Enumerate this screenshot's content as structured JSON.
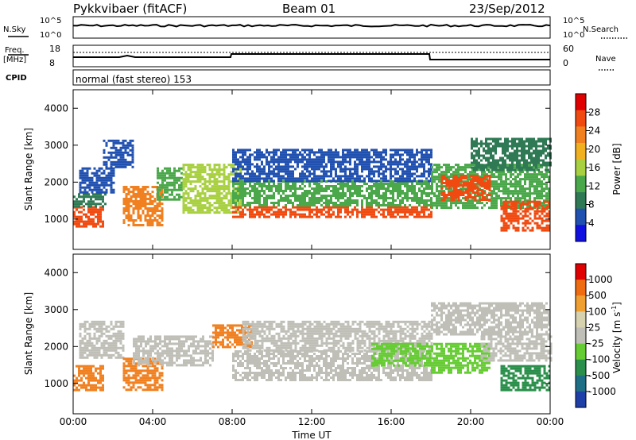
{
  "header": {
    "station": "Pykkvibaer (fitACF)",
    "beam": "Beam 01",
    "date": "23/Sep/2012"
  },
  "top_panels": {
    "nsky_label": "N.Sky",
    "nsky_ticks": [
      "10^5",
      "10^0"
    ],
    "nsearch_label": "N.Search",
    "nsearch_ticks": [
      "10^5",
      "10^0"
    ],
    "freq_label": "Freq.",
    "freq_unit": "[MHz]",
    "freq_ticks": [
      "18",
      "8"
    ],
    "nave_label": "Nave",
    "nave_ticks": [
      "60",
      "0"
    ],
    "cpid_label": "CPID",
    "cpid_text": "normal (fast stereo) 153"
  },
  "colors": {
    "power_scale": [
      "#1010e0",
      "#2050b0",
      "#2f7a55",
      "#4aa84a",
      "#a8d040",
      "#f0b020",
      "#f08020",
      "#f04a10",
      "#e00000"
    ],
    "velocity_scale": [
      "#1f3fa8",
      "#1e6f86",
      "#2a8f4a",
      "#66cc33",
      "#bfbfb7",
      "#d6d2b0",
      "#f0a030",
      "#f06c10",
      "#e00000"
    ],
    "ground_scatter": "#bfbfb7"
  },
  "chart_data": [
    {
      "type": "heatmap",
      "panel": "power",
      "ylabel": "Slant Range [km]",
      "ylim": [
        180,
        4500
      ],
      "yticks": [
        "4000",
        "3000",
        "2000",
        "1000"
      ],
      "xlim_hours": [
        0,
        24
      ],
      "colorbar_label": "Power [dB]",
      "colorbar_ticks": [
        "28",
        "24",
        "20",
        "16",
        "12",
        "8",
        "4"
      ],
      "colorbar_range": [
        0,
        32
      ],
      "bands": [
        {
          "t0": 0.0,
          "t1": 1.5,
          "r0": 800,
          "r1": 1350,
          "color": "#f04a10"
        },
        {
          "t0": 0.0,
          "t1": 1.6,
          "r0": 1350,
          "r1": 1700,
          "color": "#2f7a55"
        },
        {
          "t0": 0.3,
          "t1": 2.0,
          "r0": 1700,
          "r1": 2400,
          "color": "#2050b0"
        },
        {
          "t0": 1.5,
          "t1": 3.0,
          "r0": 2400,
          "r1": 3150,
          "color": "#2050b0"
        },
        {
          "t0": 2.5,
          "t1": 4.5,
          "r0": 850,
          "r1": 1900,
          "color": "#f08020"
        },
        {
          "t0": 4.2,
          "t1": 5.5,
          "r0": 1500,
          "r1": 2400,
          "color": "#4aa84a"
        },
        {
          "t0": 5.5,
          "t1": 8.5,
          "r0": 1200,
          "r1": 2500,
          "color": "#a8d040"
        },
        {
          "t0": 8.0,
          "t1": 18.0,
          "r0": 1050,
          "r1": 1350,
          "color": "#f04a10"
        },
        {
          "t0": 8.0,
          "t1": 18.0,
          "r0": 1350,
          "r1": 2050,
          "color": "#4aa84a"
        },
        {
          "t0": 8.0,
          "t1": 18.0,
          "r0": 2050,
          "r1": 2900,
          "color": "#2050b0"
        },
        {
          "t0": 18.0,
          "t1": 24.0,
          "r0": 1300,
          "r1": 2500,
          "color": "#4aa84a"
        },
        {
          "t0": 18.5,
          "t1": 21.0,
          "r0": 1500,
          "r1": 2200,
          "color": "#f04a10"
        },
        {
          "t0": 21.5,
          "t1": 24.0,
          "r0": 700,
          "r1": 1500,
          "color": "#f04a10"
        },
        {
          "t0": 20.0,
          "t1": 24.0,
          "r0": 2300,
          "r1": 3200,
          "color": "#2f7a55"
        }
      ]
    },
    {
      "type": "heatmap",
      "panel": "velocity",
      "ylabel": "Slant Range [km]",
      "ylim": [
        180,
        4500
      ],
      "yticks": [
        "4000",
        "3000",
        "2000",
        "1000"
      ],
      "xlim_hours": [
        0,
        24
      ],
      "xticks": [
        "00:00",
        "04:00",
        "08:00",
        "12:00",
        "16:00",
        "20:00",
        "00:00"
      ],
      "xlabel": "Time UT",
      "colorbar_label": "Velocity [m s",
      "colorbar_label_sup": "-1",
      "colorbar_label_end": "]",
      "colorbar_ticks": [
        "1000",
        "500",
        "100",
        "25",
        "-25",
        "-100",
        "-500",
        "-1000"
      ],
      "bands": [
        {
          "t0": 0.0,
          "t1": 1.5,
          "r0": 850,
          "r1": 1500,
          "color": "#f08020"
        },
        {
          "t0": 0.3,
          "t1": 2.5,
          "r0": 1700,
          "r1": 2700,
          "color": "#bfbfb7"
        },
        {
          "t0": 2.5,
          "t1": 4.5,
          "r0": 850,
          "r1": 1700,
          "color": "#f08020"
        },
        {
          "t0": 3.0,
          "t1": 7.0,
          "r0": 1500,
          "r1": 2300,
          "color": "#bfbfb7"
        },
        {
          "t0": 7.0,
          "t1": 9.0,
          "r0": 2000,
          "r1": 2600,
          "color": "#f08020"
        },
        {
          "t0": 8.0,
          "t1": 18.0,
          "r0": 1100,
          "r1": 1900,
          "color": "#bfbfb7"
        },
        {
          "t0": 8.5,
          "t1": 18.0,
          "r0": 1900,
          "r1": 2700,
          "color": "#bfbfb7"
        },
        {
          "t0": 15.0,
          "t1": 18.0,
          "r0": 1500,
          "r1": 2100,
          "color": "#66cc33"
        },
        {
          "t0": 18.0,
          "t1": 21.0,
          "r0": 1300,
          "r1": 2100,
          "color": "#66cc33"
        },
        {
          "t0": 18.0,
          "t1": 24.0,
          "r0": 2300,
          "r1": 3200,
          "color": "#bfbfb7"
        },
        {
          "t0": 21.5,
          "t1": 24.0,
          "r0": 800,
          "r1": 1500,
          "color": "#2a8f4a"
        },
        {
          "t0": 20.5,
          "t1": 24.0,
          "r0": 1600,
          "r1": 2300,
          "color": "#bfbfb7"
        }
      ]
    }
  ]
}
